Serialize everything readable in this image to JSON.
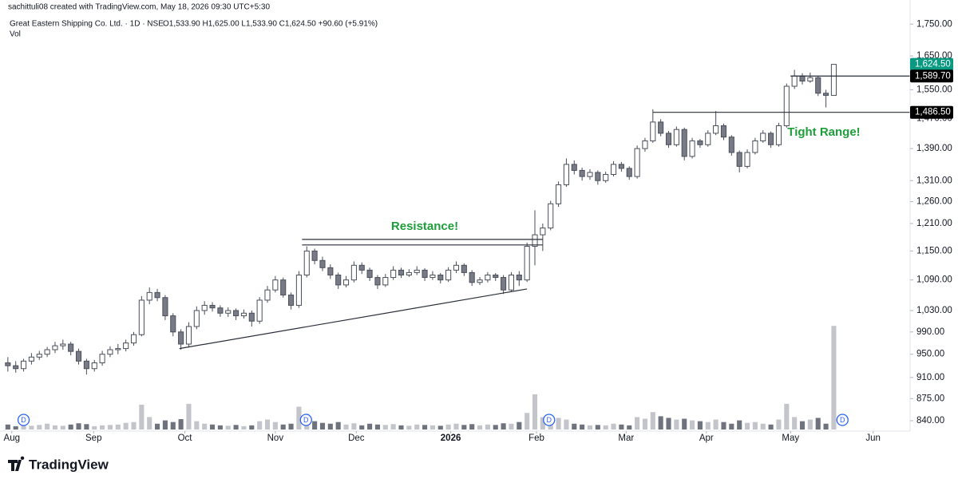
{
  "header": {
    "attribution": "sachittuli08 created with TradingView.com, May 18, 2026 09:30 UTC+5:30",
    "symbol": "Great Eastern Shipping Co. Ltd. · 1D · NSE",
    "ohlc": "O1,533.90  H1,625.00  L1,533.90  C1,624.50  +90.60 (+5.91%)",
    "volume_label": "Vol"
  },
  "footer": {
    "brand": "TradingView"
  },
  "chart_data": {
    "type": "candlestick",
    "log_scale": true,
    "up_color": "#ffffff",
    "down_color": "#787b86",
    "edge_color": "#4a4f5a",
    "volume_up_color": "#c3c5cb",
    "volume_down_color": "#6f737d",
    "ylim": [
      824,
      1830
    ],
    "xlim": [
      -1,
      114.7
    ],
    "volume_lim": [
      0,
      1040
    ],
    "yticks": [
      {
        "value": 840,
        "label": "840.00"
      },
      {
        "value": 875,
        "label": "875.00"
      },
      {
        "value": 910,
        "label": "910.00"
      },
      {
        "value": 950,
        "label": "950.00"
      },
      {
        "value": 990,
        "label": "990.00"
      },
      {
        "value": 1030,
        "label": "1,030.00"
      },
      {
        "value": 1090,
        "label": "1,090.00"
      },
      {
        "value": 1150,
        "label": "1,150.00"
      },
      {
        "value": 1210,
        "label": "1,210.00"
      },
      {
        "value": 1260,
        "label": "1,260.00"
      },
      {
        "value": 1310,
        "label": "1,310.00"
      },
      {
        "value": 1390,
        "label": "1,390.00"
      },
      {
        "value": 1470,
        "label": "1,470.00"
      },
      {
        "value": 1550,
        "label": "1,550.00"
      },
      {
        "value": 1650,
        "label": "1,650.00"
      },
      {
        "value": 1750,
        "label": "1,750.00"
      }
    ],
    "xticks": [
      {
        "value": 0.5,
        "label": "Aug"
      },
      {
        "value": 10.9,
        "label": "Sep"
      },
      {
        "value": 22.5,
        "label": "Oct"
      },
      {
        "value": 34,
        "label": "Nov"
      },
      {
        "value": 44.3,
        "label": "Dec"
      },
      {
        "value": 56.3,
        "label": "2026"
      },
      {
        "value": 67.2,
        "label": "Feb"
      },
      {
        "value": 78.6,
        "label": "Mar"
      },
      {
        "value": 88.8,
        "label": "Apr"
      },
      {
        "value": 99.5,
        "label": "May"
      },
      {
        "value": 110,
        "label": "Jun"
      }
    ],
    "candles": [
      [
        935,
        945,
        920,
        930
      ],
      [
        930,
        938,
        918,
        925
      ],
      [
        925,
        942,
        920,
        938
      ],
      [
        938,
        952,
        932,
        945
      ],
      [
        945,
        956,
        940,
        950
      ],
      [
        950,
        963,
        945,
        958
      ],
      [
        958,
        972,
        952,
        965
      ],
      [
        965,
        976,
        958,
        968
      ],
      [
        968,
        972,
        948,
        955
      ],
      [
        955,
        960,
        932,
        938
      ],
      [
        938,
        942,
        915,
        925
      ],
      [
        925,
        940,
        920,
        935
      ],
      [
        935,
        956,
        930,
        950
      ],
      [
        950,
        964,
        945,
        958
      ],
      [
        958,
        968,
        950,
        960
      ],
      [
        960,
        976,
        955,
        970
      ],
      [
        970,
        990,
        965,
        985
      ],
      [
        985,
        1058,
        982,
        1050
      ],
      [
        1050,
        1075,
        1042,
        1065
      ],
      [
        1065,
        1072,
        1048,
        1055
      ],
      [
        1055,
        1060,
        1012,
        1020
      ],
      [
        1020,
        1025,
        982,
        990
      ],
      [
        990,
        995,
        958,
        968
      ],
      [
        968,
        1008,
        962,
        1000
      ],
      [
        1000,
        1038,
        995,
        1030
      ],
      [
        1030,
        1048,
        1022,
        1040
      ],
      [
        1040,
        1046,
        1028,
        1035
      ],
      [
        1035,
        1040,
        1018,
        1025
      ],
      [
        1025,
        1036,
        1018,
        1030
      ],
      [
        1030,
        1034,
        1012,
        1020
      ],
      [
        1020,
        1032,
        1015,
        1025
      ],
      [
        1025,
        1030,
        1000,
        1010
      ],
      [
        1010,
        1056,
        1005,
        1050
      ],
      [
        1050,
        1078,
        1045,
        1070
      ],
      [
        1070,
        1098,
        1065,
        1090
      ],
      [
        1090,
        1095,
        1055,
        1060
      ],
      [
        1060,
        1065,
        1032,
        1040
      ],
      [
        1040,
        1108,
        1035,
        1100
      ],
      [
        1100,
        1160,
        1095,
        1150
      ],
      [
        1150,
        1155,
        1122,
        1130
      ],
      [
        1130,
        1138,
        1108,
        1115
      ],
      [
        1115,
        1122,
        1092,
        1100
      ],
      [
        1100,
        1105,
        1072,
        1080
      ],
      [
        1080,
        1098,
        1075,
        1090
      ],
      [
        1090,
        1128,
        1085,
        1120
      ],
      [
        1120,
        1126,
        1102,
        1110
      ],
      [
        1110,
        1115,
        1088,
        1095
      ],
      [
        1095,
        1100,
        1072,
        1080
      ],
      [
        1080,
        1102,
        1076,
        1095
      ],
      [
        1095,
        1118,
        1090,
        1110
      ],
      [
        1110,
        1115,
        1094,
        1100
      ],
      [
        1100,
        1112,
        1096,
        1105
      ],
      [
        1105,
        1118,
        1100,
        1110
      ],
      [
        1110,
        1114,
        1088,
        1095
      ],
      [
        1095,
        1108,
        1090,
        1100
      ],
      [
        1100,
        1104,
        1083,
        1090
      ],
      [
        1090,
        1116,
        1086,
        1110
      ],
      [
        1110,
        1128,
        1104,
        1120
      ],
      [
        1120,
        1124,
        1098,
        1105
      ],
      [
        1105,
        1110,
        1078,
        1085
      ],
      [
        1085,
        1096,
        1080,
        1090
      ],
      [
        1090,
        1106,
        1085,
        1100
      ],
      [
        1100,
        1104,
        1088,
        1095
      ],
      [
        1095,
        1100,
        1062,
        1070
      ],
      [
        1070,
        1106,
        1066,
        1100
      ],
      [
        1100,
        1108,
        1078,
        1090
      ],
      [
        1090,
        1168,
        1086,
        1160
      ],
      [
        1160,
        1240,
        1120,
        1185
      ],
      [
        1185,
        1210,
        1150,
        1200
      ],
      [
        1200,
        1262,
        1195,
        1255
      ],
      [
        1255,
        1308,
        1248,
        1300
      ],
      [
        1300,
        1365,
        1295,
        1350
      ],
      [
        1350,
        1360,
        1325,
        1335
      ],
      [
        1335,
        1342,
        1310,
        1320
      ],
      [
        1320,
        1338,
        1312,
        1330
      ],
      [
        1330,
        1335,
        1300,
        1310
      ],
      [
        1310,
        1332,
        1305,
        1325
      ],
      [
        1325,
        1358,
        1320,
        1350
      ],
      [
        1350,
        1356,
        1332,
        1340
      ],
      [
        1340,
        1345,
        1312,
        1320
      ],
      [
        1320,
        1398,
        1315,
        1390
      ],
      [
        1390,
        1418,
        1382,
        1410
      ],
      [
        1410,
        1495,
        1405,
        1460
      ],
      [
        1460,
        1468,
        1422,
        1430
      ],
      [
        1430,
        1436,
        1392,
        1400
      ],
      [
        1400,
        1448,
        1395,
        1440
      ],
      [
        1440,
        1445,
        1360,
        1370
      ],
      [
        1370,
        1418,
        1365,
        1410
      ],
      [
        1410,
        1415,
        1392,
        1400
      ],
      [
        1400,
        1438,
        1395,
        1430
      ],
      [
        1430,
        1490,
        1425,
        1450
      ],
      [
        1450,
        1456,
        1412,
        1420
      ],
      [
        1420,
        1425,
        1372,
        1380
      ],
      [
        1380,
        1385,
        1330,
        1345
      ],
      [
        1345,
        1388,
        1340,
        1380
      ],
      [
        1380,
        1418,
        1375,
        1410
      ],
      [
        1410,
        1438,
        1405,
        1430
      ],
      [
        1430,
        1435,
        1392,
        1400
      ],
      [
        1400,
        1458,
        1395,
        1450
      ],
      [
        1450,
        1568,
        1445,
        1560
      ],
      [
        1560,
        1608,
        1552,
        1590
      ],
      [
        1590,
        1598,
        1565,
        1575
      ],
      [
        1575,
        1600,
        1570,
        1585
      ],
      [
        1585,
        1590,
        1532,
        1540
      ],
      [
        1540,
        1550,
        1500,
        1533.9
      ],
      [
        1533.9,
        1625,
        1533.9,
        1624.5
      ]
    ],
    "volume": [
      12,
      8,
      10,
      9,
      11,
      14,
      10,
      9,
      12,
      15,
      13,
      8,
      10,
      11,
      12,
      16,
      18,
      60,
      30,
      14,
      22,
      18,
      25,
      62,
      20,
      14,
      12,
      10,
      9,
      11,
      8,
      10,
      20,
      24,
      18,
      12,
      14,
      55,
      38,
      20,
      16,
      14,
      18,
      12,
      15,
      10,
      14,
      12,
      11,
      13,
      10,
      9,
      12,
      11,
      10,
      9,
      12,
      14,
      11,
      13,
      10,
      12,
      11,
      15,
      14,
      18,
      40,
      85,
      30,
      26,
      28,
      24,
      14,
      12,
      10,
      11,
      10,
      14,
      12,
      10,
      30,
      26,
      42,
      32,
      28,
      24,
      26,
      22,
      20,
      18,
      24,
      18,
      14,
      22,
      16,
      18,
      14,
      12,
      24,
      62,
      30,
      20,
      24,
      28,
      14,
      250,
      34
    ],
    "event_markers": [
      {
        "index": 2,
        "label": "D"
      },
      {
        "index": 37.9,
        "label": "D"
      },
      {
        "index": 68.8,
        "label": "D"
      },
      {
        "index": 106.1,
        "label": "D"
      }
    ],
    "trend_lines": [
      {
        "points": [
          [
            21.8,
            960
          ],
          [
            66,
            1072
          ]
        ]
      },
      {
        "points": [
          [
            37.4,
            1175
          ],
          [
            68,
            1175
          ]
        ]
      },
      {
        "points": [
          [
            37.4,
            1163
          ],
          [
            68,
            1163
          ]
        ]
      },
      {
        "points": [
          [
            82,
            1486.5
          ],
          [
            114.7,
            1486.5
          ]
        ]
      },
      {
        "points": [
          [
            99.5,
            1589.7
          ],
          [
            114.7,
            1589.7
          ]
        ]
      }
    ],
    "price_labels": [
      {
        "value": 1624.5,
        "label": "1,624.50",
        "color": "#089981"
      },
      {
        "value": 1589.7,
        "label": "1,589.70",
        "color": "#000000"
      },
      {
        "value": 1486.5,
        "label": "1,486.50",
        "color": "#000000"
      }
    ],
    "annotations": [
      "Resistance!",
      "Tight Range!"
    ]
  }
}
